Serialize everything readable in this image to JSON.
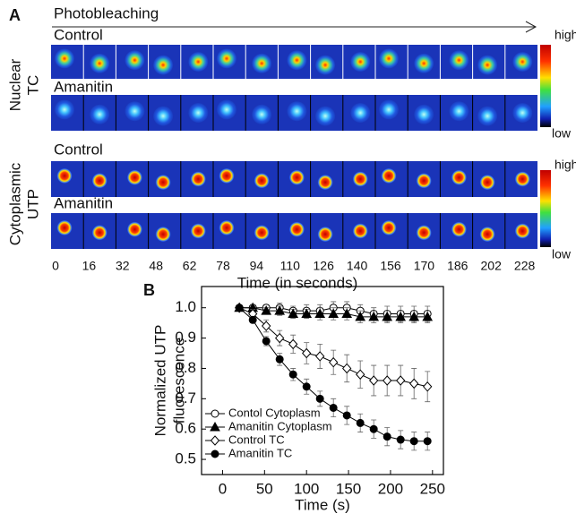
{
  "panel_a": {
    "label": "A",
    "arrow_label": "Photobleaching",
    "groups": [
      {
        "label": [
          "Nuclear",
          "TC"
        ],
        "rows": [
          "Control",
          "Amanitin"
        ]
      },
      {
        "label": [
          "Cytoplasmic",
          "UTP"
        ],
        "rows": [
          "Control",
          "Amanitin"
        ]
      }
    ],
    "colorbar_high": "high",
    "colorbar_low": "low",
    "time_ticks": [
      0,
      16,
      32,
      48,
      62,
      78,
      94,
      110,
      126,
      140,
      156,
      170,
      186,
      202,
      228
    ],
    "x_label": "Time (in seconds)"
  },
  "chart_data": {
    "type": "line",
    "panel_label": "B",
    "x_label": "Time (s)",
    "y_label": [
      "Normalized UTP",
      "fluorescence"
    ],
    "x": [
      20,
      36,
      52,
      68,
      84,
      100,
      116,
      132,
      148,
      164,
      180,
      196,
      212,
      228,
      244
    ],
    "series": [
      {
        "name": "Contol Cytoplasm",
        "color": "#000000",
        "marker": "open-circle",
        "values": [
          1.0,
          1.0,
          1.0,
          1.0,
          0.99,
          0.99,
          0.99,
          1.0,
          1.0,
          0.99,
          0.98,
          0.98,
          0.98,
          0.98,
          0.98
        ],
        "errors": [
          0.005,
          0.01,
          0.01,
          0.015,
          0.015,
          0.02,
          0.02,
          0.02,
          0.02,
          0.02,
          0.02,
          0.025,
          0.025,
          0.025,
          0.025
        ]
      },
      {
        "name": "Amanitin Cytoplasm",
        "color": "#000000",
        "marker": "filled-triangle",
        "values": [
          1.0,
          1.0,
          0.99,
          0.99,
          0.98,
          0.98,
          0.98,
          0.98,
          0.98,
          0.97,
          0.97,
          0.97,
          0.97,
          0.97,
          0.97
        ],
        "errors": [
          0.005,
          0.01,
          0.01,
          0.015,
          0.015,
          0.015,
          0.02,
          0.02,
          0.02,
          0.02,
          0.02,
          0.02,
          0.02,
          0.02,
          0.02
        ]
      },
      {
        "name": "Control TC",
        "color": "#000000",
        "marker": "open-diamond",
        "values": [
          1.0,
          0.98,
          0.94,
          0.9,
          0.88,
          0.85,
          0.84,
          0.82,
          0.8,
          0.78,
          0.76,
          0.76,
          0.76,
          0.75,
          0.74
        ],
        "errors": [
          0.005,
          0.015,
          0.02,
          0.025,
          0.03,
          0.035,
          0.04,
          0.04,
          0.045,
          0.045,
          0.05,
          0.05,
          0.05,
          0.05,
          0.05
        ]
      },
      {
        "name": "Amanitin TC",
        "color": "#000000",
        "marker": "filled-circle",
        "values": [
          1.0,
          0.96,
          0.89,
          0.83,
          0.78,
          0.74,
          0.7,
          0.67,
          0.645,
          0.62,
          0.6,
          0.575,
          0.565,
          0.56,
          0.56
        ],
        "errors": [
          0.005,
          0.01,
          0.015,
          0.02,
          0.02,
          0.025,
          0.025,
          0.03,
          0.03,
          0.03,
          0.03,
          0.03,
          0.03,
          0.03,
          0.03
        ]
      }
    ],
    "xlim": [
      -25,
      263
    ],
    "ylim": [
      0.45,
      1.07
    ],
    "xticks": [
      0,
      50,
      100,
      150,
      200,
      250
    ],
    "yticks": [
      0.5,
      0.6,
      0.7,
      0.8,
      0.9,
      {
        "value": 1,
        "label": "1.0"
      }
    ],
    "legend": "lower-left"
  }
}
